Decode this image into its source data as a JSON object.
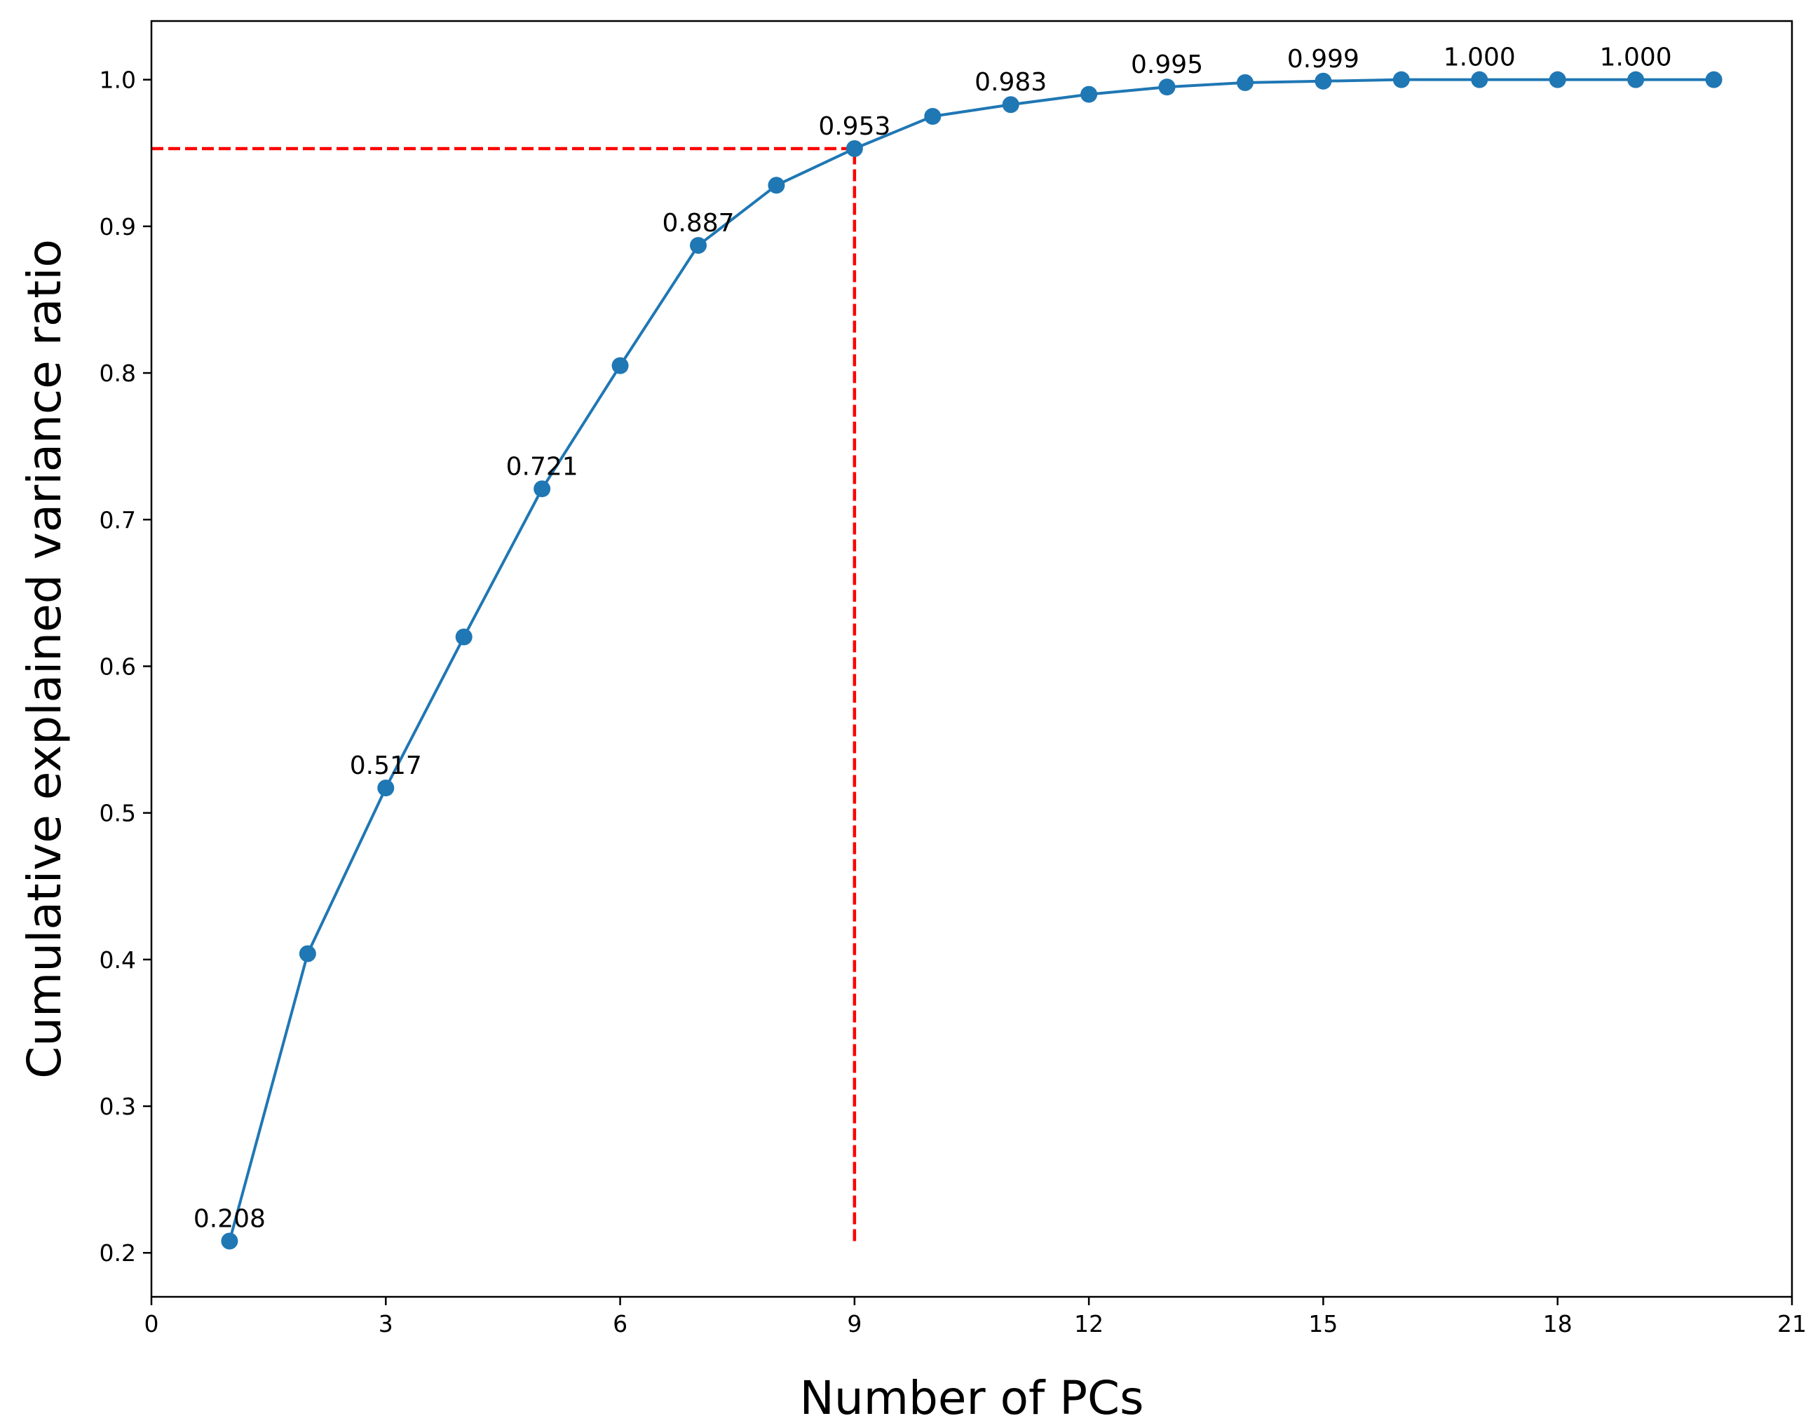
{
  "chart_data": {
    "type": "line",
    "title": "",
    "xlabel": "Number of PCs",
    "ylabel": "Cumulative explained variance ratio",
    "xlim": [
      0,
      21
    ],
    "ylim": [
      0.17,
      1.04
    ],
    "xticks": [
      0,
      3,
      6,
      9,
      12,
      15,
      18,
      21
    ],
    "yticks": [
      0.2,
      0.3,
      0.4,
      0.5,
      0.6,
      0.7,
      0.8,
      0.9,
      1.0
    ],
    "xtick_labels": [
      "0",
      "3",
      "6",
      "9",
      "12",
      "15",
      "18",
      "21"
    ],
    "ytick_labels": [
      "0.2",
      "0.3",
      "0.4",
      "0.5",
      "0.6",
      "0.7",
      "0.8",
      "0.9",
      "1.0"
    ],
    "grid": false,
    "series": [
      {
        "x": [
          1,
          2,
          3,
          4,
          5,
          6,
          7,
          8,
          9,
          10,
          11,
          12,
          13,
          14,
          15,
          16,
          17,
          18,
          19,
          20
        ],
        "values": [
          0.208,
          0.404,
          0.517,
          0.62,
          0.721,
          0.805,
          0.887,
          0.928,
          0.953,
          0.975,
          0.983,
          0.99,
          0.995,
          0.998,
          0.999,
          1.0,
          1.0,
          1.0,
          1.0,
          1.0
        ],
        "color": "#1f77b4",
        "marker": "circle"
      }
    ],
    "annotations": [
      {
        "x": 1,
        "y": 0.208,
        "text": "0.208"
      },
      {
        "x": 3,
        "y": 0.517,
        "text": "0.517"
      },
      {
        "x": 5,
        "y": 0.721,
        "text": "0.721"
      },
      {
        "x": 7,
        "y": 0.887,
        "text": "0.887"
      },
      {
        "x": 9,
        "y": 0.953,
        "text": "0.953"
      },
      {
        "x": 11,
        "y": 0.983,
        "text": "0.983"
      },
      {
        "x": 13,
        "y": 0.995,
        "text": "0.995"
      },
      {
        "x": 15,
        "y": 0.999,
        "text": "0.999"
      },
      {
        "x": 17,
        "y": 1.0,
        "text": "1.000"
      },
      {
        "x": 19,
        "y": 1.0,
        "text": "1.000"
      }
    ],
    "reference_lines": [
      {
        "orientation": "horizontal",
        "y": 0.953,
        "x_from": 0,
        "x_to": 9,
        "color": "#ff0000",
        "style": "dashed"
      },
      {
        "orientation": "vertical",
        "x": 9,
        "y_from": 0.208,
        "y_to": 0.953,
        "color": "#ff0000",
        "style": "dashed"
      }
    ]
  }
}
